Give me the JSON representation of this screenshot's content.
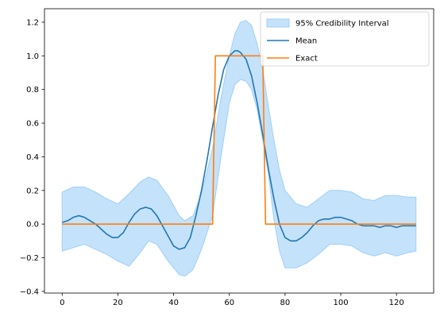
{
  "chart_data": {
    "type": "line",
    "title": "",
    "xlabel": "",
    "ylabel": "",
    "xlim": [
      -6.35,
      133.35
    ],
    "ylim": [
      -0.41,
      1.28
    ],
    "xticks": [
      0,
      20,
      40,
      60,
      80,
      100,
      120
    ],
    "xtick_labels": [
      "0",
      "20",
      "40",
      "60",
      "80",
      "100",
      "120"
    ],
    "yticks": [
      -0.4,
      -0.2,
      0.0,
      0.2,
      0.4,
      0.6,
      0.8,
      1.0,
      1.2
    ],
    "ytick_labels": [
      "−0.4",
      "−0.2",
      "0.0",
      "0.2",
      "0.4",
      "0.6",
      "0.8",
      "1.0",
      "1.2"
    ],
    "grid": false,
    "legend_position": "upper-right",
    "legend": [
      "95% Credibility Interval",
      "Mean",
      "Exact"
    ],
    "colors": {
      "band": "#9ecff8",
      "band_edge": "#9ecff8",
      "mean": "#1f77b4",
      "exact": "#ff7f0e"
    },
    "series": [
      {
        "name": "95% Credibility Interval",
        "kind": "band",
        "x": [
          0,
          4,
          8,
          12,
          16,
          20,
          24,
          28,
          31,
          34,
          38,
          42,
          44,
          47,
          50,
          54,
          57,
          60,
          62,
          64,
          66,
          68,
          70,
          72,
          74,
          76,
          78,
          80,
          84,
          88,
          92,
          96,
          100,
          104,
          108,
          112,
          116,
          120,
          124,
          127
        ],
        "upper": [
          0.19,
          0.22,
          0.22,
          0.19,
          0.15,
          0.12,
          0.18,
          0.25,
          0.28,
          0.26,
          0.17,
          0.05,
          0.02,
          0.05,
          0.18,
          0.45,
          0.75,
          1.0,
          1.13,
          1.2,
          1.21,
          1.18,
          1.07,
          0.92,
          0.7,
          0.5,
          0.32,
          0.2,
          0.12,
          0.1,
          0.15,
          0.2,
          0.2,
          0.19,
          0.15,
          0.14,
          0.17,
          0.17,
          0.16,
          0.16
        ],
        "lower": [
          -0.16,
          -0.14,
          -0.12,
          -0.15,
          -0.18,
          -0.22,
          -0.25,
          -0.17,
          -0.1,
          -0.12,
          -0.22,
          -0.3,
          -0.31,
          -0.27,
          -0.15,
          0.05,
          0.4,
          0.72,
          0.83,
          0.86,
          0.85,
          0.8,
          0.68,
          0.5,
          0.3,
          0.03,
          -0.16,
          -0.26,
          -0.26,
          -0.23,
          -0.18,
          -0.12,
          -0.12,
          -0.13,
          -0.17,
          -0.19,
          -0.17,
          -0.19,
          -0.17,
          -0.16
        ]
      },
      {
        "name": "Mean",
        "kind": "line",
        "x": [
          0,
          2,
          4,
          6,
          8,
          10,
          12,
          14,
          16,
          18,
          20,
          22,
          24,
          26,
          28,
          30,
          32,
          34,
          36,
          38,
          40,
          42,
          44,
          46,
          48,
          50,
          52,
          54,
          56,
          58,
          60,
          62,
          63,
          64,
          66,
          68,
          70,
          72,
          74,
          76,
          78,
          80,
          82,
          84,
          86,
          88,
          90,
          92,
          94,
          96,
          98,
          100,
          102,
          104,
          106,
          108,
          110,
          112,
          114,
          116,
          118,
          120,
          122,
          124,
          126,
          127
        ],
        "y": [
          0.01,
          0.02,
          0.04,
          0.05,
          0.04,
          0.02,
          0.0,
          -0.03,
          -0.06,
          -0.08,
          -0.08,
          -0.05,
          0.01,
          0.06,
          0.09,
          0.1,
          0.09,
          0.05,
          -0.01,
          -0.07,
          -0.13,
          -0.15,
          -0.14,
          -0.08,
          0.05,
          0.2,
          0.38,
          0.58,
          0.77,
          0.92,
          1.0,
          1.03,
          1.03,
          1.02,
          0.98,
          0.88,
          0.72,
          0.53,
          0.33,
          0.15,
          0.0,
          -0.08,
          -0.1,
          -0.1,
          -0.08,
          -0.05,
          -0.01,
          0.02,
          0.03,
          0.03,
          0.04,
          0.04,
          0.03,
          0.02,
          0.0,
          -0.01,
          -0.01,
          -0.01,
          -0.02,
          -0.01,
          -0.01,
          -0.02,
          -0.01,
          -0.01,
          -0.01,
          -0.01
        ]
      },
      {
        "name": "Exact",
        "kind": "line",
        "x": [
          0,
          54,
          55,
          72,
          73,
          127
        ],
        "y": [
          0,
          0,
          1,
          1,
          0,
          0
        ]
      }
    ]
  }
}
